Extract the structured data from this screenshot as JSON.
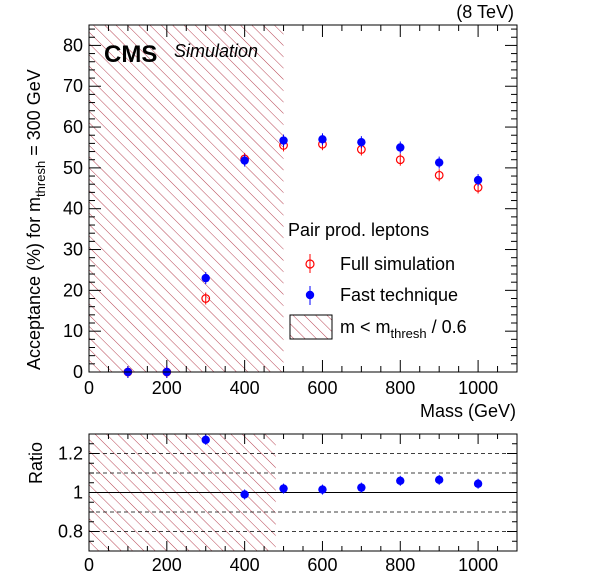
{
  "chart_data": [
    {
      "type": "scatter",
      "energy_label": "(8 TeV)",
      "experiment": "CMS",
      "tag": "Simulation",
      "ylabel_main": "Acceptance (%) for m",
      "ylabel_sub": "thresh",
      "ylabel_tail": " = 300 GeV",
      "xlabel": "Mass (GeV)",
      "xlim": [
        0,
        1100
      ],
      "ylim": [
        0,
        85
      ],
      "x_ticks": [
        0,
        200,
        400,
        600,
        800,
        1000
      ],
      "y_ticks": [
        0,
        10,
        20,
        30,
        40,
        50,
        60,
        70,
        80
      ],
      "hatch_region": {
        "x_from": 0,
        "x_to": 500
      },
      "legend": {
        "placement": "center-right",
        "title": "Pair prod. leptons",
        "hatch_main": "m < m",
        "hatch_sub": "thresh",
        "hatch_tail": " / 0.6"
      },
      "series": [
        {
          "name": "Full simulation",
          "marker": "open-circle",
          "color": "#ff0000",
          "x": [
            100,
            200,
            300,
            400,
            500,
            600,
            700,
            800,
            900,
            1000
          ],
          "y": [
            0,
            0,
            18.0,
            52.2,
            55.5,
            55.8,
            54.5,
            52.0,
            48.2,
            45.2
          ]
        },
        {
          "name": "Fast technique",
          "marker": "filled-circle",
          "color": "#0000ff",
          "x": [
            100,
            200,
            300,
            400,
            500,
            600,
            700,
            800,
            900,
            1000
          ],
          "y": [
            0,
            0,
            23.0,
            51.8,
            56.7,
            57.0,
            56.3,
            55.0,
            51.3,
            47.0
          ]
        }
      ]
    },
    {
      "type": "scatter",
      "ylabel": "Ratio",
      "xlim": [
        0,
        1100
      ],
      "ylim": [
        0.7,
        1.3
      ],
      "x_ticks": [
        0,
        200,
        400,
        600,
        800,
        1000
      ],
      "y_ticks": [
        0.8,
        1,
        1.2
      ],
      "y_tick_labels": [
        "0.8",
        "1",
        "1.2"
      ],
      "reference_line": 1,
      "dashed_lines": [
        0.8,
        0.9,
        1.1,
        1.2
      ],
      "hatch_region": {
        "x_from": 0,
        "x_to": 480
      },
      "series": [
        {
          "name": "Ratio",
          "marker": "filled-circle",
          "color": "#0000ff",
          "x": [
            300,
            400,
            500,
            600,
            700,
            800,
            900,
            1000
          ],
          "y": [
            1.27,
            0.99,
            1.02,
            1.015,
            1.025,
            1.06,
            1.065,
            1.045
          ]
        }
      ]
    }
  ]
}
